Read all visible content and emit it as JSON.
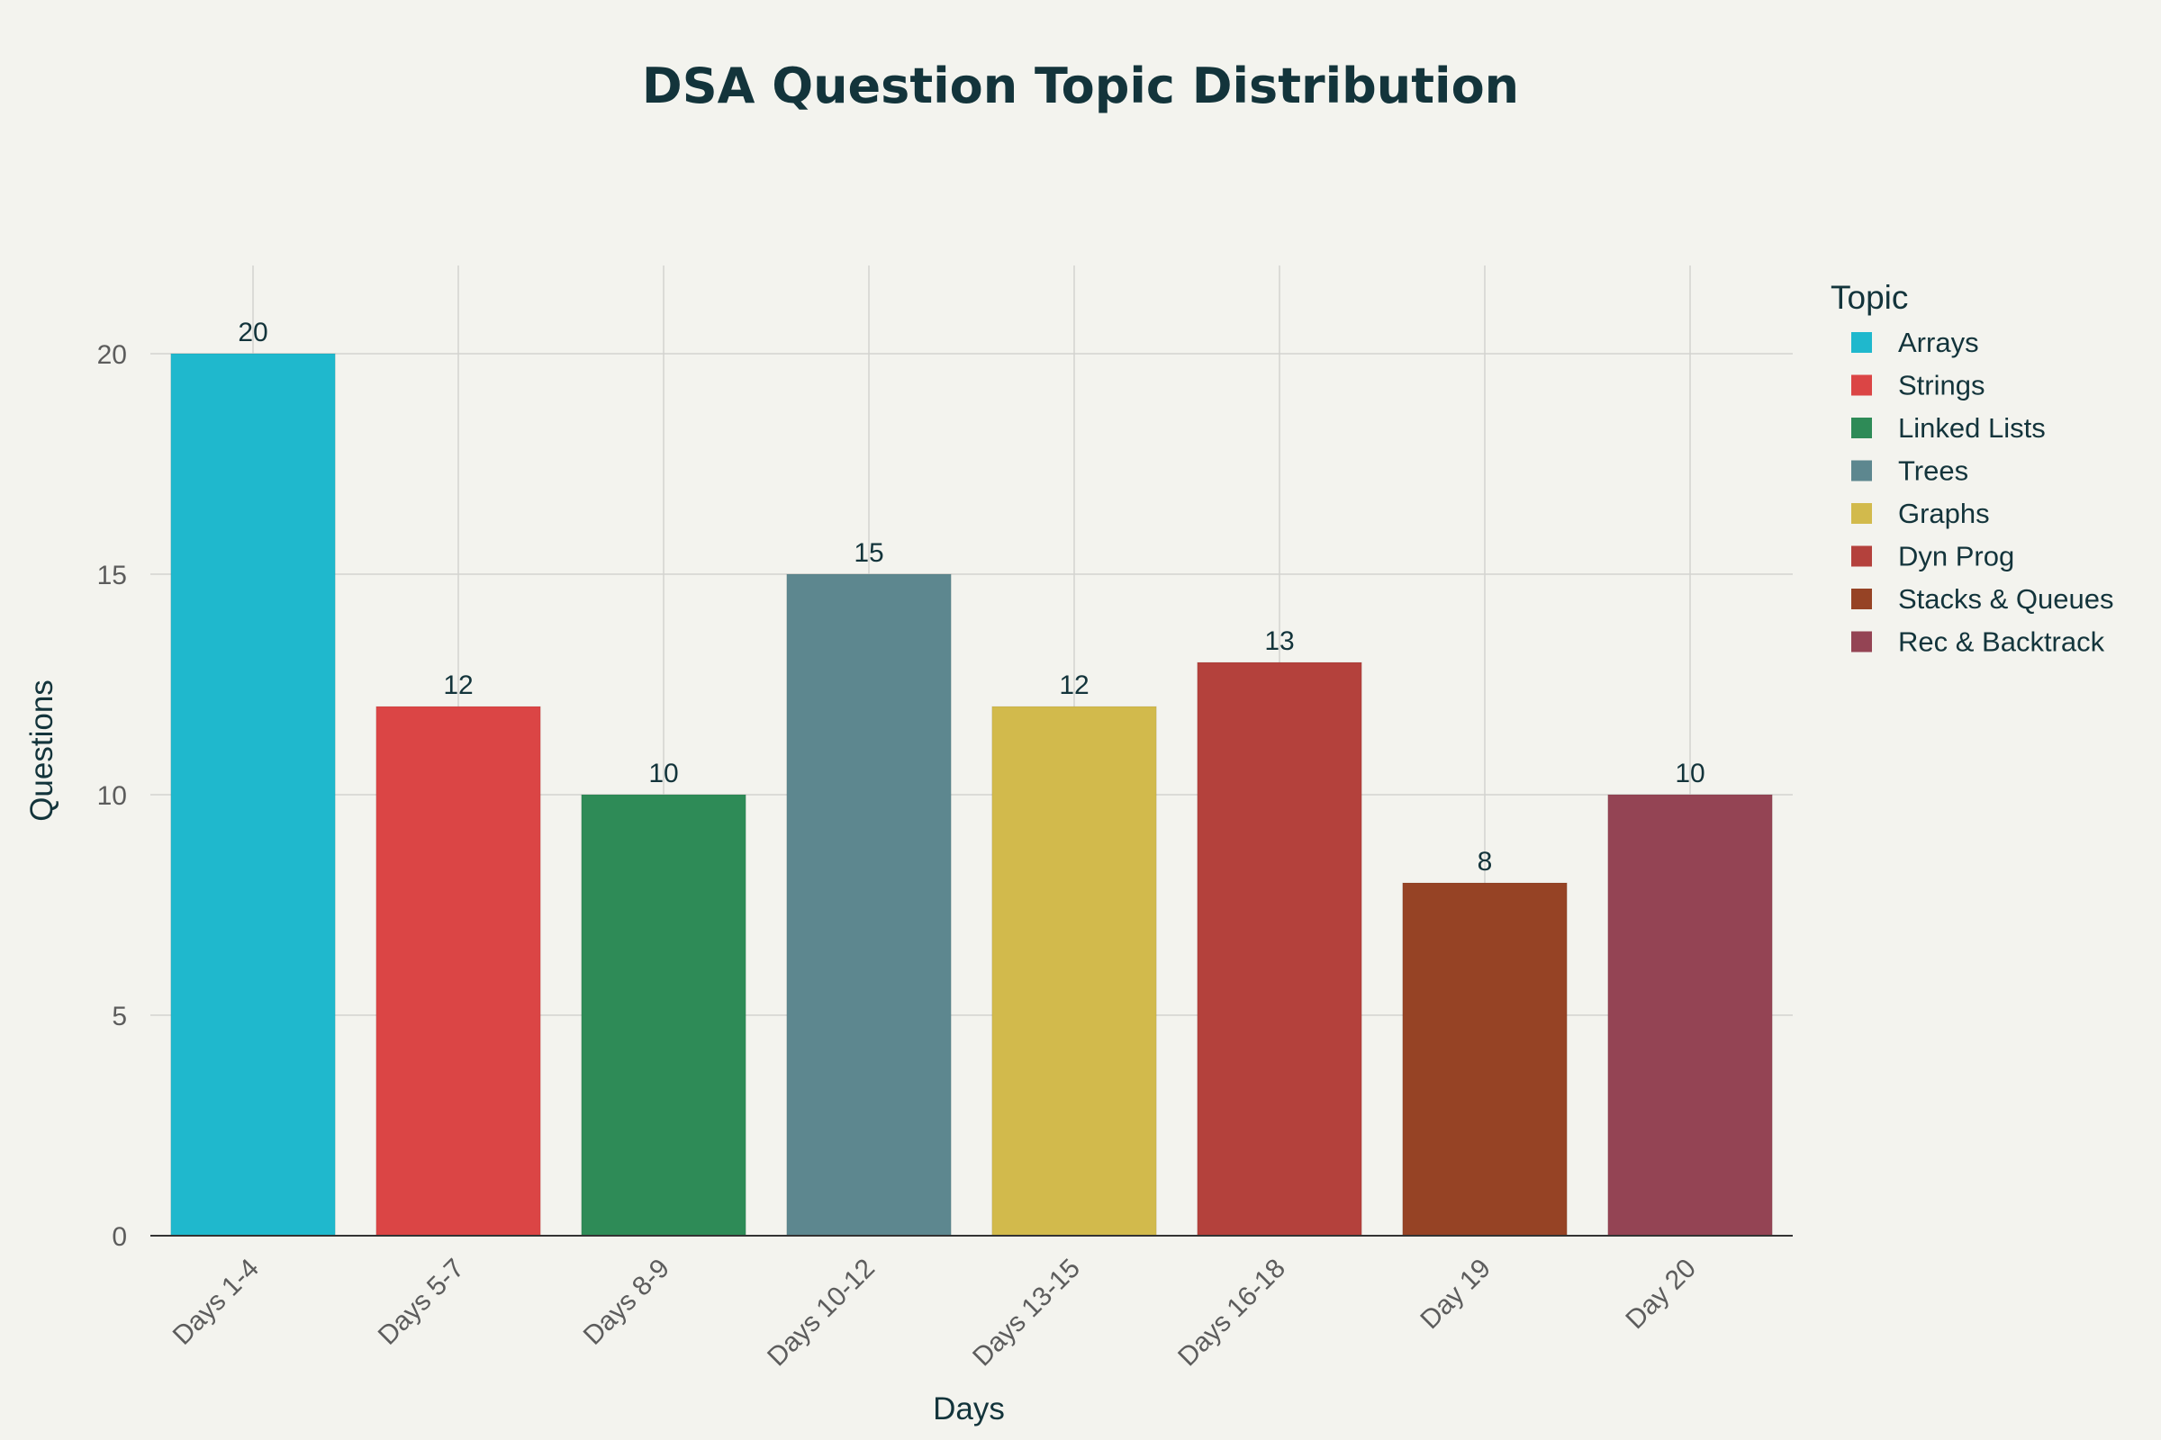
{
  "chart_data": {
    "type": "bar",
    "title": "DSA Question Topic Distribution",
    "xlabel": "Days",
    "ylabel": "Questions",
    "categories": [
      "Days 1-4",
      "Days 5-7",
      "Days 8-9",
      "Days 10-12",
      "Days 13-15",
      "Days 16-18",
      "Day 19",
      "Day 20"
    ],
    "values": [
      20,
      12,
      10,
      15,
      12,
      13,
      8,
      10
    ],
    "series": [
      {
        "name": "Arrays",
        "category": "Days 1-4",
        "value": 20,
        "color": "#1fb8cd"
      },
      {
        "name": "Strings",
        "category": "Days 5-7",
        "value": 12,
        "color": "#db4545"
      },
      {
        "name": "Linked Lists",
        "category": "Days 8-9",
        "value": 10,
        "color": "#2e8b57"
      },
      {
        "name": "Trees",
        "category": "Days 10-12",
        "value": 15,
        "color": "#5d878f"
      },
      {
        "name": "Graphs",
        "category": "Days 13-15",
        "value": 12,
        "color": "#d2ba4c"
      },
      {
        "name": "Dyn Prog",
        "category": "Days 16-18",
        "value": 13,
        "color": "#b4413c"
      },
      {
        "name": "Stacks & Queues",
        "category": "Day 19",
        "value": 8,
        "color": "#964325"
      },
      {
        "name": "Rec & Backtrack",
        "category": "Day 20",
        "value": 10,
        "color": "#944454"
      }
    ],
    "ylim": [
      0,
      22
    ],
    "yticks": [
      0,
      5,
      10,
      15,
      20
    ],
    "grid": true,
    "legend_title": "Topic",
    "legend_position": "right"
  }
}
